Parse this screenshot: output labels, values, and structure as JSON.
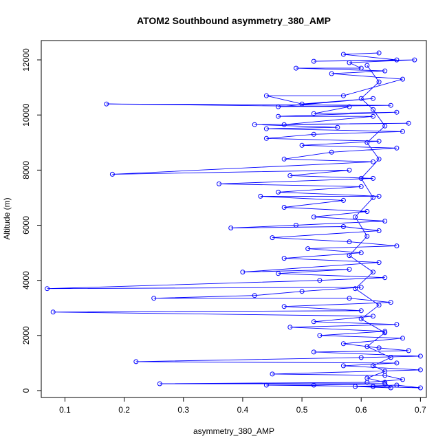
{
  "chart_data": {
    "type": "scatter",
    "title": "ATOM2 Southbound asymmetry_380_AMP",
    "xlabel": "asymmetry_380_AMP",
    "ylabel": "Altitude (m)",
    "xlim": [
      0.06,
      0.71
    ],
    "ylim": [
      -250,
      12700
    ],
    "x_ticks": [
      0.1,
      0.2,
      0.3,
      0.4,
      0.5,
      0.6,
      0.7
    ],
    "y_ticks": [
      0,
      2000,
      4000,
      6000,
      8000,
      10000,
      12000
    ],
    "x_tick_labels": [
      "0.1",
      "0.2",
      "0.3",
      "0.4",
      "0.5",
      "0.6",
      "0.7"
    ],
    "y_tick_labels": [
      "0",
      "2000",
      "4000",
      "6000",
      "8000",
      "10000",
      "12000"
    ],
    "grid": false,
    "legend": "none",
    "series": [
      {
        "color": "#0000ff",
        "marker": "open-circle",
        "connected": true,
        "points": [
          [
            0.63,
            12250
          ],
          [
            0.57,
            12200
          ],
          [
            0.66,
            12000
          ],
          [
            0.52,
            11950
          ],
          [
            0.69,
            12000
          ],
          [
            0.58,
            11900
          ],
          [
            0.6,
            11700
          ],
          [
            0.49,
            11700
          ],
          [
            0.64,
            11600
          ],
          [
            0.55,
            11500
          ],
          [
            0.67,
            11300
          ],
          [
            0.57,
            10700
          ],
          [
            0.44,
            10700
          ],
          [
            0.5,
            10400
          ],
          [
            0.62,
            10600
          ],
          [
            0.46,
            10300
          ],
          [
            0.65,
            10350
          ],
          [
            0.17,
            10400
          ],
          [
            0.58,
            10300
          ],
          [
            0.52,
            10050
          ],
          [
            0.66,
            10100
          ],
          [
            0.46,
            9950
          ],
          [
            0.62,
            9950
          ],
          [
            0.47,
            9650
          ],
          [
            0.68,
            9700
          ],
          [
            0.42,
            9650
          ],
          [
            0.56,
            9550
          ],
          [
            0.44,
            9500
          ],
          [
            0.67,
            9400
          ],
          [
            0.52,
            9300
          ],
          [
            0.44,
            9150
          ],
          [
            0.63,
            9050
          ],
          [
            0.5,
            8900
          ],
          [
            0.66,
            8800
          ],
          [
            0.55,
            8650
          ],
          [
            0.47,
            8400
          ],
          [
            0.62,
            8300
          ],
          [
            0.18,
            7850
          ],
          [
            0.58,
            8000
          ],
          [
            0.48,
            7800
          ],
          [
            0.62,
            7700
          ],
          [
            0.36,
            7500
          ],
          [
            0.6,
            7400
          ],
          [
            0.46,
            7200
          ],
          [
            0.63,
            7050
          ],
          [
            0.43,
            7050
          ],
          [
            0.57,
            6900
          ],
          [
            0.47,
            6650
          ],
          [
            0.61,
            6500
          ],
          [
            0.52,
            6300
          ],
          [
            0.64,
            6150
          ],
          [
            0.49,
            6000
          ],
          [
            0.38,
            5900
          ],
          [
            0.57,
            5950
          ],
          [
            0.63,
            5800
          ],
          [
            0.45,
            5550
          ],
          [
            0.58,
            5400
          ],
          [
            0.66,
            5250
          ],
          [
            0.51,
            5150
          ],
          [
            0.6,
            5000
          ],
          [
            0.47,
            4800
          ],
          [
            0.63,
            4650
          ],
          [
            0.4,
            4300
          ],
          [
            0.58,
            4400
          ],
          [
            0.46,
            4250
          ],
          [
            0.64,
            4100
          ],
          [
            0.53,
            4000
          ],
          [
            0.07,
            3700
          ],
          [
            0.6,
            3750
          ],
          [
            0.5,
            3600
          ],
          [
            0.42,
            3450
          ],
          [
            0.25,
            3350
          ],
          [
            0.58,
            3350
          ],
          [
            0.65,
            3200
          ],
          [
            0.47,
            3050
          ],
          [
            0.6,
            2900
          ],
          [
            0.08,
            2850
          ],
          [
            0.62,
            2700
          ],
          [
            0.52,
            2500
          ],
          [
            0.66,
            2400
          ],
          [
            0.48,
            2300
          ],
          [
            0.64,
            2150
          ],
          [
            0.53,
            2000
          ],
          [
            0.67,
            1900
          ],
          [
            0.57,
            1700
          ],
          [
            0.63,
            1550
          ],
          [
            0.68,
            1450
          ],
          [
            0.52,
            1400
          ],
          [
            0.7,
            1250
          ],
          [
            0.6,
            1200
          ],
          [
            0.22,
            1050
          ],
          [
            0.66,
            1000
          ],
          [
            0.57,
            900
          ],
          [
            0.7,
            750
          ],
          [
            0.45,
            600
          ],
          [
            0.64,
            550
          ],
          [
            0.67,
            400
          ],
          [
            0.61,
            300
          ],
          [
            0.26,
            250
          ],
          [
            0.64,
            250
          ],
          [
            0.52,
            200
          ],
          [
            0.44,
            200
          ],
          [
            0.62,
            150
          ],
          [
            0.7,
            100
          ],
          [
            0.66,
            200
          ],
          [
            0.59,
            150
          ],
          [
            0.65,
            100
          ],
          [
            0.64,
            300
          ],
          [
            0.61,
            450
          ],
          [
            0.64,
            700
          ],
          [
            0.62,
            900
          ],
          [
            0.65,
            1200
          ],
          [
            0.61,
            1600
          ],
          [
            0.64,
            2100
          ],
          [
            0.6,
            2600
          ],
          [
            0.63,
            3100
          ],
          [
            0.59,
            3700
          ],
          [
            0.62,
            4300
          ],
          [
            0.58,
            4900
          ],
          [
            0.61,
            5600
          ],
          [
            0.59,
            6300
          ],
          [
            0.62,
            7000
          ],
          [
            0.6,
            7700
          ],
          [
            0.63,
            8400
          ],
          [
            0.61,
            9000
          ],
          [
            0.64,
            9600
          ],
          [
            0.62,
            10200
          ],
          [
            0.6,
            10600
          ],
          [
            0.63,
            11200
          ],
          [
            0.61,
            11800
          ]
        ]
      }
    ]
  }
}
